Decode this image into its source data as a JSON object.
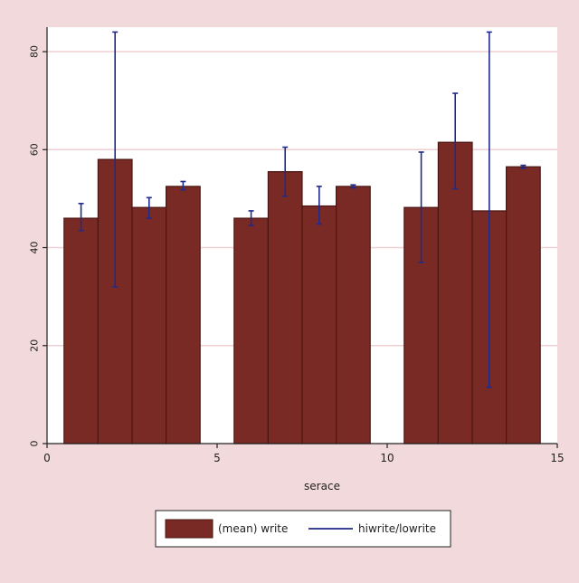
{
  "colors": {
    "background": "#f2d9dc",
    "plot_background": "#ffffff",
    "bar_fill": "#7a2a24",
    "bar_stroke": "#4a1612",
    "error_bar": "#1f2a8a",
    "gridline": "#f0cfd3",
    "axis": "#222222",
    "text": "#222222"
  },
  "chart_data": {
    "type": "bar",
    "title": "",
    "xlabel": "serace",
    "ylabel": "",
    "xlim": [
      0,
      15
    ],
    "ylim": [
      0,
      85
    ],
    "x_ticks": [
      0,
      5,
      10,
      15
    ],
    "y_ticks": [
      0,
      20,
      40,
      60,
      80
    ],
    "grid": true,
    "legend_position": "bottom",
    "legend": [
      {
        "type": "bar",
        "label": "(mean) write"
      },
      {
        "type": "line",
        "label": "hiwrite/lowrite"
      }
    ],
    "series": [
      {
        "name": "(mean) write",
        "x": [
          1,
          2,
          3,
          4,
          6,
          7,
          8,
          9,
          11,
          12,
          13,
          14
        ],
        "values": [
          46,
          58,
          48.2,
          52.5,
          46,
          55.5,
          48.5,
          52.5,
          48.2,
          61.5,
          47.5,
          56.5
        ]
      },
      {
        "name": "hiwrite/lowrite",
        "x": [
          1,
          2,
          3,
          4,
          6,
          7,
          8,
          9,
          11,
          12,
          13,
          14
        ],
        "high": [
          49,
          84,
          50.2,
          53.5,
          47.5,
          60.5,
          52.5,
          52.8,
          59.5,
          71.5,
          84,
          56.8
        ],
        "low": [
          43.5,
          32,
          46,
          51.8,
          44.5,
          50.5,
          44.8,
          52.2,
          37,
          52,
          11.5,
          56.2
        ]
      }
    ]
  }
}
